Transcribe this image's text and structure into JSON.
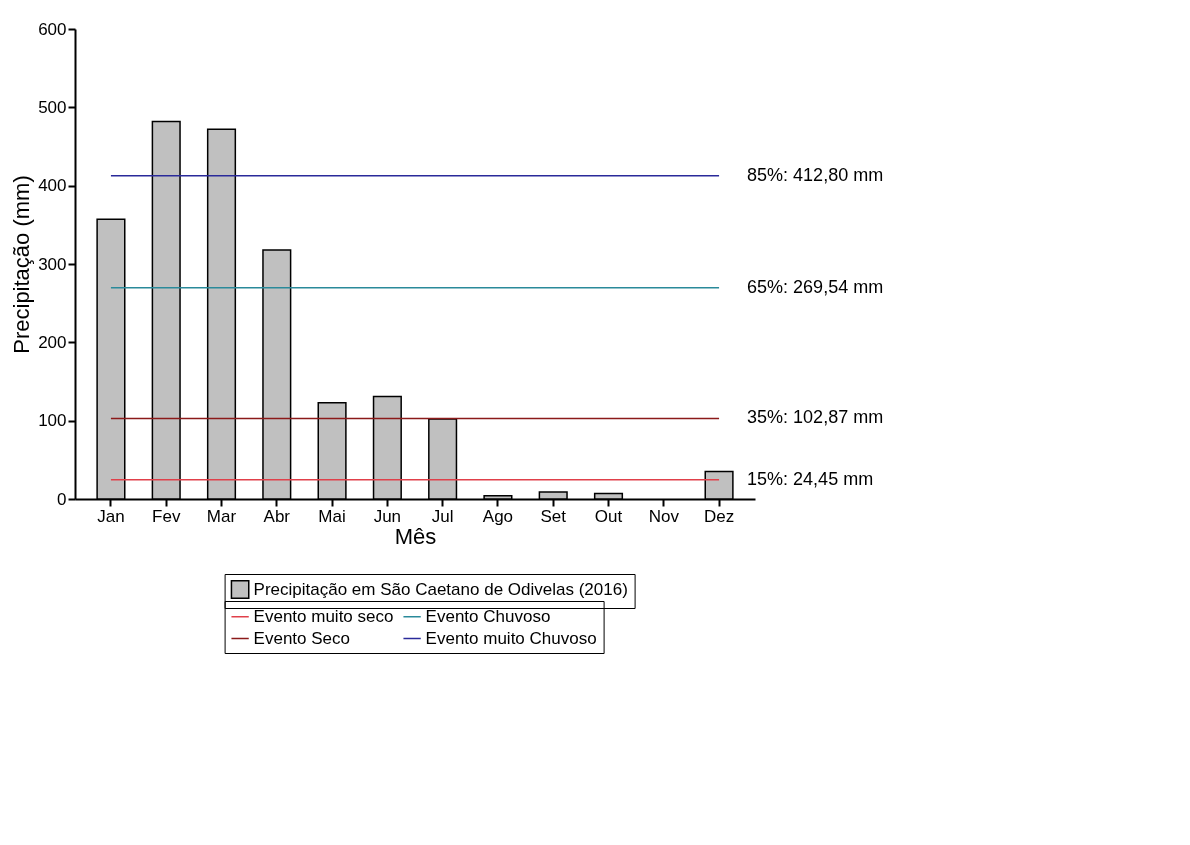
{
  "chart_data": {
    "type": "bar",
    "xlabel": "Mês",
    "ylabel": "Precipitação (mm)",
    "categories": [
      "Jan",
      "Fev",
      "Mar",
      "Abr",
      "Mai",
      "Jun",
      "Jul",
      "Ago",
      "Set",
      "Out",
      "Nov",
      "Dez"
    ],
    "series": [
      {
        "name": "Precipitação em São Caetano de Odivelas (2016)",
        "color": "#c0c0c0",
        "values": [
          357,
          482,
          472,
          318,
          123,
          131,
          102,
          4,
          9,
          7,
          null,
          35
        ]
      },
      {
        "name": "Evento muito seco",
        "type": "line",
        "color": "#e0404a",
        "values": [
          24.45,
          24.45,
          24.45,
          24.45,
          24.45,
          24.45,
          24.45,
          24.45,
          24.45,
          24.45,
          24.45,
          24.45
        ]
      },
      {
        "name": "Evento Seco",
        "type": "line",
        "color": "#8b1a1a",
        "values": [
          102.87,
          102.87,
          102.87,
          102.87,
          102.87,
          102.87,
          102.87,
          102.87,
          102.87,
          102.87,
          102.87,
          102.87
        ]
      },
      {
        "name": "Evento Chuvoso",
        "type": "line",
        "color": "#2a8a9a",
        "values": [
          269.54,
          269.54,
          269.54,
          269.54,
          269.54,
          269.54,
          269.54,
          269.54,
          269.54,
          269.54,
          269.54,
          269.54
        ]
      },
      {
        "name": "Evento muito Chuvoso",
        "type": "line",
        "color": "#2a2a9a",
        "values": [
          412.8,
          412.8,
          412.8,
          412.8,
          412.8,
          412.8,
          412.8,
          412.8,
          412.8,
          412.8,
          412.8,
          412.8
        ]
      }
    ],
    "annotations": [
      {
        "text": "85%: 412,80 mm",
        "x": "Dez",
        "y": 412.8
      },
      {
        "text": "65%: 269,54 mm",
        "x": "Dez",
        "y": 269.54
      },
      {
        "text": "35%: 102,87 mm",
        "x": "Dez",
        "y": 102.87
      },
      {
        "text": "15%: 24,45 mm",
        "x": "Dez",
        "y": 24.45
      }
    ],
    "ylim": [
      0,
      600
    ],
    "yticks": [
      0,
      100,
      200,
      300,
      400,
      500,
      600
    ],
    "legend": "bottom"
  }
}
